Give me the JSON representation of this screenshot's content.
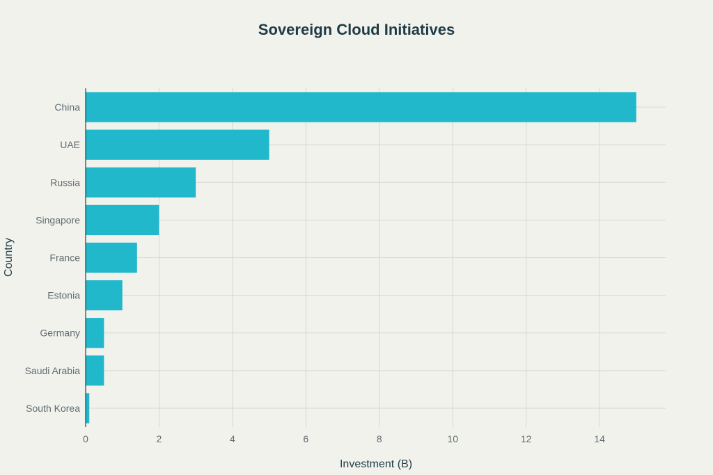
{
  "chart_data": {
    "type": "bar",
    "orientation": "horizontal",
    "title": "Sovereign Cloud Initiatives",
    "xlabel": "Investment (B)",
    "ylabel": "Country",
    "categories": [
      "China",
      "UAE",
      "Russia",
      "Singapore",
      "France",
      "Estonia",
      "Germany",
      "Saudi Arabia",
      "South Korea"
    ],
    "values": [
      15,
      5,
      3,
      2,
      1.4,
      1,
      0.5,
      0.5,
      0.1
    ],
    "xlim": [
      0,
      15.8
    ],
    "xticks": [
      0,
      2,
      4,
      6,
      8,
      10,
      12,
      14
    ],
    "grid": true,
    "bar_color": "#21b8cc"
  }
}
